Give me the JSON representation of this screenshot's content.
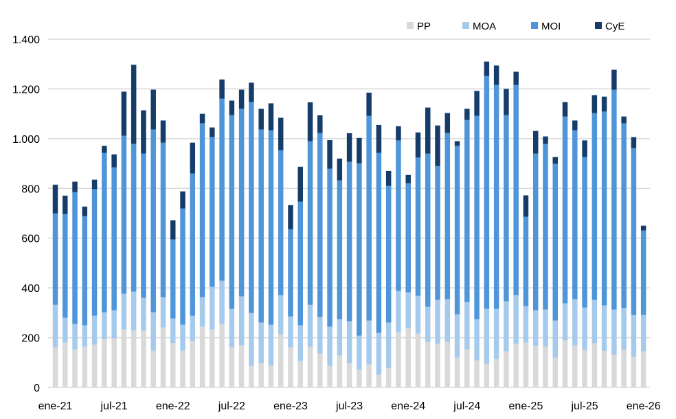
{
  "chart_data": {
    "type": "bar",
    "stacked": true,
    "title": "",
    "xlabel": "",
    "ylabel": "",
    "ylim": [
      0,
      1400
    ],
    "y_ticks": [
      0,
      200,
      400,
      600,
      800,
      1000,
      1200,
      1400
    ],
    "y_tick_labels": [
      "0",
      "200",
      "400",
      "600",
      "800",
      "1.000",
      "1.200",
      "1.400"
    ],
    "grid": true,
    "legend_position": "top-right",
    "x_tick_labels": [
      "ene-21",
      "jul-21",
      "ene-22",
      "jul-22",
      "ene-23",
      "jul-23",
      "ene-24",
      "jul-24",
      "ene-25",
      "jul-25",
      "ene-26"
    ],
    "x_tick_every": 6,
    "categories": [
      "ene-21",
      "feb-21",
      "mar-21",
      "abr-21",
      "may-21",
      "jun-21",
      "jul-21",
      "ago-21",
      "sep-21",
      "oct-21",
      "nov-21",
      "dic-21",
      "ene-22",
      "feb-22",
      "mar-22",
      "abr-22",
      "may-22",
      "jun-22",
      "jul-22",
      "ago-22",
      "sep-22",
      "oct-22",
      "nov-22",
      "dic-22",
      "ene-23",
      "feb-23",
      "mar-23",
      "abr-23",
      "may-23",
      "jun-23",
      "jul-23",
      "ago-23",
      "sep-23",
      "oct-23",
      "nov-23",
      "dic-23",
      "ene-24",
      "feb-24",
      "mar-24",
      "abr-24",
      "may-24",
      "jun-24",
      "jul-24",
      "ago-24",
      "sep-24",
      "oct-24",
      "nov-24",
      "dic-24",
      "ene-25",
      "feb-25",
      "mar-25",
      "abr-25",
      "may-25",
      "jun-25",
      "jul-25",
      "ago-25",
      "sep-25",
      "oct-25",
      "nov-25",
      "dic-25",
      "ene-26"
    ],
    "series": [
      {
        "name": "PP",
        "color": "#d9d9d9",
        "values": [
          161,
          180,
          153,
          164,
          172,
          194,
          197,
          233,
          230,
          227,
          147,
          241,
          178,
          147,
          186,
          244,
          233,
          255,
          161,
          169,
          87,
          98,
          87,
          214,
          161,
          106,
          164,
          136,
          87,
          128,
          98,
          70,
          92,
          51,
          78,
          222,
          238,
          216,
          183,
          175,
          183,
          120,
          153,
          109,
          95,
          114,
          145,
          175,
          180,
          167,
          164,
          120,
          189,
          169,
          150,
          178,
          147,
          131,
          150,
          122,
          145
        ]
      },
      {
        "name": "MOA",
        "color": "#a6caec",
        "values": [
          171,
          100,
          102,
          86,
          116,
          108,
          113,
          144,
          155,
          133,
          155,
          122,
          99,
          105,
          102,
          119,
          171,
          174,
          155,
          197,
          212,
          163,
          165,
          157,
          124,
          144,
          168,
          147,
          157,
          146,
          168,
          138,
          177,
          168,
          183,
          166,
          144,
          152,
          141,
          177,
          172,
          174,
          190,
          165,
          221,
          202,
          201,
          196,
          147,
          143,
          149,
          149,
          149,
          186,
          171,
          174,
          183,
          182,
          169,
          169,
          146
        ]
      },
      {
        "name": "MOI",
        "color": "#4e95d9",
        "values": [
          368,
          417,
          530,
          439,
          509,
          641,
          575,
          635,
          594,
          580,
          735,
          621,
          318,
          467,
          572,
          699,
          602,
          732,
          779,
          754,
          848,
          776,
          782,
          583,
          351,
          497,
          658,
          740,
          635,
          558,
          641,
          693,
          823,
          724,
          549,
          605,
          439,
          556,
          616,
          538,
          668,
          677,
          732,
          818,
          936,
          900,
          749,
          845,
          359,
          630,
          666,
          630,
          751,
          679,
          605,
          751,
          779,
          884,
          743,
          671,
          340
        ]
      },
      {
        "name": "CyE",
        "color": "#163d6a",
        "values": [
          115,
          74,
          42,
          38,
          38,
          28,
          52,
          177,
          318,
          174,
          160,
          89,
          77,
          69,
          124,
          38,
          39,
          77,
          58,
          77,
          78,
          83,
          108,
          130,
          97,
          140,
          156,
          71,
          115,
          88,
          115,
          102,
          93,
          112,
          60,
          57,
          33,
          101,
          185,
          163,
          80,
          19,
          45,
          100,
          58,
          78,
          105,
          53,
          86,
          91,
          30,
          27,
          58,
          39,
          67,
          72,
          60,
          80,
          27,
          44,
          19
        ]
      }
    ],
    "gridline_color": "#d9d9d9"
  }
}
